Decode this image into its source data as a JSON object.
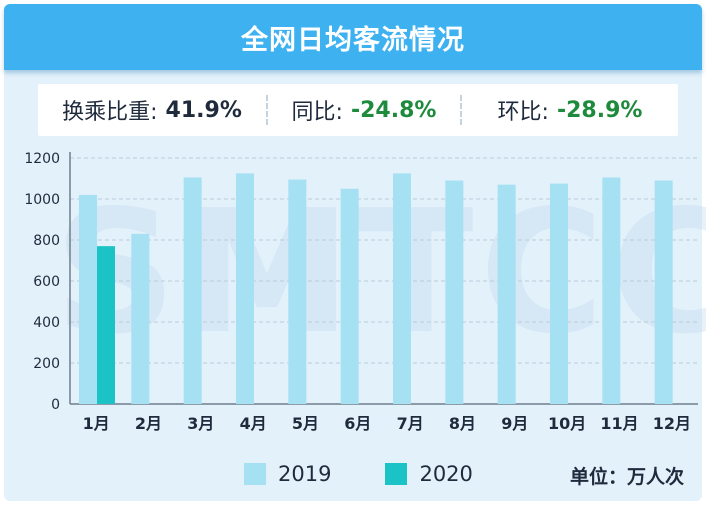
{
  "header": {
    "title": "全网日均客流情况"
  },
  "stats": [
    {
      "label": "换乘比重:",
      "value": "41.9%",
      "tone": "pos"
    },
    {
      "label": "同比:",
      "value": "-24.8%",
      "tone": "neg"
    },
    {
      "label": "环比:",
      "value": "-28.9%",
      "tone": "neg"
    }
  ],
  "watermark": "SMTCC",
  "unit_label": "单位：万人次",
  "colors": {
    "title_bg": "#3eb1f1",
    "card_bg": "#e3f1fb",
    "series_2019": "#a6e1f3",
    "series_2020": "#1bc3c6",
    "negative": "#1e8a3c"
  },
  "chart_data": {
    "type": "bar",
    "categories": [
      "1月",
      "2月",
      "3月",
      "4月",
      "5月",
      "6月",
      "7月",
      "8月",
      "9月",
      "10月",
      "11月",
      "12月"
    ],
    "series": [
      {
        "name": "2019",
        "values": [
          1020,
          830,
          1105,
          1125,
          1095,
          1050,
          1125,
          1090,
          1070,
          1075,
          1105,
          1090
        ]
      },
      {
        "name": "2020",
        "values": [
          770,
          null,
          null,
          null,
          null,
          null,
          null,
          null,
          null,
          null,
          null,
          null
        ]
      }
    ],
    "ylim": [
      0,
      1200
    ],
    "yticks": [
      0,
      200,
      400,
      600,
      800,
      1000,
      1200
    ],
    "grid": true,
    "legend": "bottom"
  }
}
